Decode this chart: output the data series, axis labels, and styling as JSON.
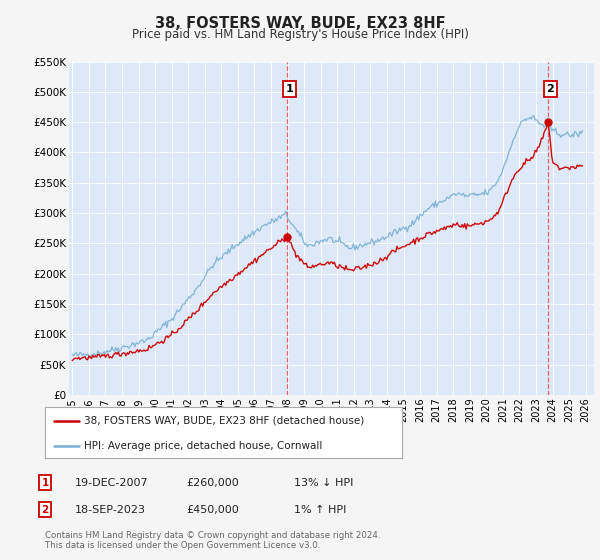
{
  "title": "38, FOSTERS WAY, BUDE, EX23 8HF",
  "subtitle": "Price paid vs. HM Land Registry's House Price Index (HPI)",
  "plot_bg_color": "#dde8f8",
  "fig_bg_color": "#f5f5f5",
  "ylim": [
    0,
    550000
  ],
  "yticks": [
    0,
    50000,
    100000,
    150000,
    200000,
    250000,
    300000,
    350000,
    400000,
    450000,
    500000,
    550000
  ],
  "ytick_labels": [
    "£0",
    "£50K",
    "£100K",
    "£150K",
    "£200K",
    "£250K",
    "£300K",
    "£350K",
    "£400K",
    "£450K",
    "£500K",
    "£550K"
  ],
  "xlim_start": 1994.8,
  "xlim_end": 2026.5,
  "xticks": [
    1995,
    1996,
    1997,
    1998,
    1999,
    2000,
    2001,
    2002,
    2003,
    2004,
    2005,
    2006,
    2007,
    2008,
    2009,
    2010,
    2011,
    2012,
    2013,
    2014,
    2015,
    2016,
    2017,
    2018,
    2019,
    2020,
    2021,
    2022,
    2023,
    2024,
    2025,
    2026
  ],
  "hpi_color": "#7ab0d4",
  "price_color": "#cc0000",
  "marker_color": "#cc0000",
  "vline_color": "#ee5555",
  "transaction1": {
    "date_num": 2007.97,
    "price": 260000,
    "label": "1",
    "date_str": "19-DEC-2007",
    "price_str": "£260,000",
    "hpi_rel": "13% ↓ HPI"
  },
  "transaction2": {
    "date_num": 2023.72,
    "price": 450000,
    "label": "2",
    "date_str": "18-SEP-2023",
    "price_str": "£450,000",
    "hpi_rel": "1% ↑ HPI"
  },
  "footnote1": "Contains HM Land Registry data © Crown copyright and database right 2024.",
  "footnote2": "This data is licensed under the Open Government Licence v3.0.",
  "legend_line1": "38, FOSTERS WAY, BUDE, EX23 8HF (detached house)",
  "legend_line2": "HPI: Average price, detached house, Cornwall"
}
